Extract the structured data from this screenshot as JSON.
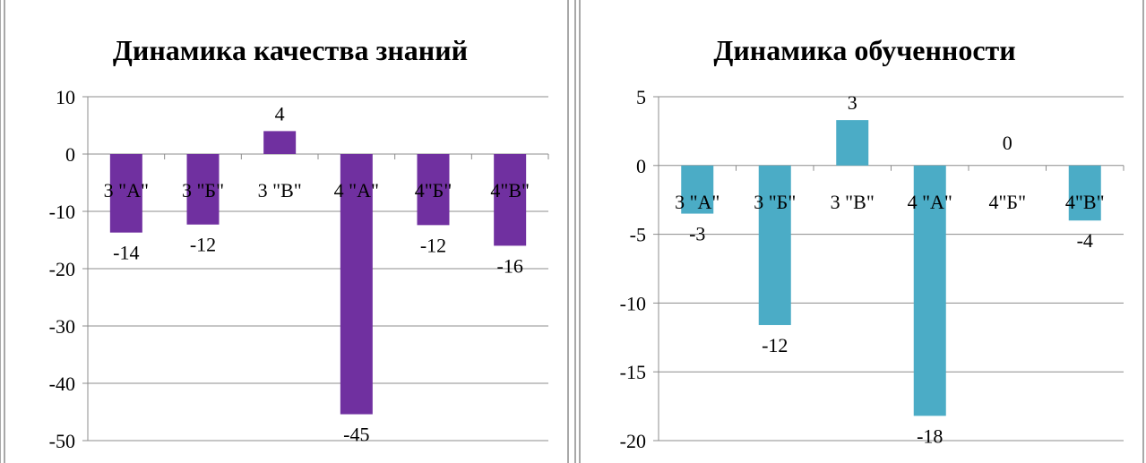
{
  "chart_data": [
    {
      "type": "bar",
      "title": "Динамика качества знаний",
      "categories": [
        "3 \"А\"",
        "3 \"Б\"",
        "3 \"В\"",
        "4 \"А\"",
        "4\"Б\"",
        "4\"В\""
      ],
      "values": [
        -13.7,
        -12.3,
        4,
        -45.4,
        -12.4,
        -16
      ],
      "data_labels": [
        "-14",
        "-12",
        "4",
        "-45",
        "-12",
        "-16"
      ],
      "yticks": [
        "10",
        "0",
        "-10",
        "-20",
        "-30",
        "-40",
        "-50"
      ],
      "ylim": [
        -50,
        10
      ],
      "grid": true,
      "bar_color": "#7030A0"
    },
    {
      "type": "bar",
      "title": "Динамика обученности",
      "categories": [
        "3 \"А\"",
        "3 \"Б\"",
        "3 \"В\"",
        "4 \"А\"",
        "4\"Б\"",
        "4\"В\""
      ],
      "values": [
        -3.5,
        -11.6,
        3.3,
        -18.2,
        0,
        -4
      ],
      "data_labels": [
        "-3",
        "-12",
        "3",
        "-18",
        "0",
        "-4"
      ],
      "yticks": [
        "5",
        "0",
        "-5",
        "-10",
        "-15",
        "-20"
      ],
      "ylim": [
        -20,
        5
      ],
      "grid": true,
      "bar_color": "#4BACC6"
    }
  ]
}
